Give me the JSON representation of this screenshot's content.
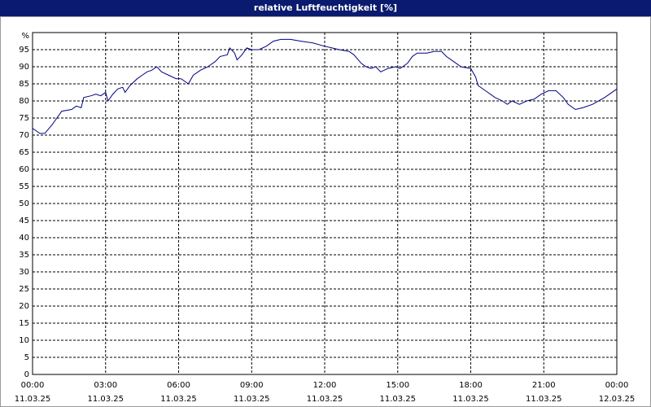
{
  "chart_data": {
    "type": "line",
    "title": "relative Luftfeuchtigkeit [%]",
    "x": [
      0,
      0.3,
      0.5,
      0.8,
      1.0,
      1.2,
      1.6,
      1.8,
      2.0,
      2.1,
      2.4,
      2.6,
      2.8,
      3.0,
      3.1,
      3.3,
      3.5,
      3.7,
      3.8,
      4.0,
      4.3,
      4.5,
      4.7,
      4.9,
      5.1,
      5.3,
      5.6,
      5.9,
      6.1,
      6.3,
      6.4,
      6.6,
      6.9,
      7.2,
      7.5,
      7.7,
      8.0,
      8.1,
      8.3,
      8.4,
      8.6,
      8.8,
      9.0,
      9.3,
      9.6,
      9.9,
      10.2,
      10.6,
      11.0,
      11.5,
      12.0,
      12.3,
      12.6,
      13.0,
      13.2,
      13.5,
      13.7,
      13.9,
      14.1,
      14.3,
      14.6,
      14.9,
      15.1,
      15.4,
      15.6,
      15.8,
      16.2,
      16.5,
      16.8,
      17.0,
      17.3,
      17.6,
      18.0,
      18.2,
      18.3,
      18.6,
      19.0,
      19.3,
      19.5,
      19.7,
      20.0,
      20.3,
      20.6,
      20.9,
      21.2,
      21.5,
      21.8,
      22.0,
      22.3,
      22.6,
      23.0,
      23.5,
      24.0
    ],
    "series": [
      {
        "name": "relative Luftfeuchtigkeit",
        "color": "#000080",
        "values": [
          72,
          70.5,
          70.5,
          73,
          75,
          77,
          77.5,
          78.5,
          78,
          81,
          81.5,
          82,
          81.5,
          82.5,
          80,
          82,
          83.5,
          84,
          82.5,
          84.5,
          86.5,
          87.5,
          88.5,
          89,
          90,
          88.5,
          87.5,
          86.5,
          86.5,
          85.5,
          85,
          87.5,
          89,
          90,
          91.5,
          93,
          93.5,
          95.5,
          94,
          92,
          93.5,
          95.5,
          95,
          95,
          96,
          97.5,
          98,
          98,
          97.5,
          97,
          96,
          95.5,
          95,
          94.5,
          93.5,
          91,
          90,
          89.5,
          90,
          88.5,
          89.5,
          90,
          89.5,
          91,
          93,
          94,
          94,
          94.5,
          94.5,
          93,
          91.5,
          90,
          89.5,
          87,
          84.5,
          83,
          81,
          80,
          79,
          80,
          79,
          80,
          80.5,
          82,
          83,
          83,
          81,
          79,
          77.5,
          78,
          79,
          81,
          83.5
        ]
      }
    ],
    "xlim": [
      0,
      24
    ],
    "xticks": [
      {
        "value": 0,
        "label": "00:00"
      },
      {
        "value": 3,
        "label": "03:00"
      },
      {
        "value": 6,
        "label": "06:00"
      },
      {
        "value": 9,
        "label": "09:00"
      },
      {
        "value": 12,
        "label": "12:00"
      },
      {
        "value": 15,
        "label": "15:00"
      },
      {
        "value": 18,
        "label": "18:00"
      },
      {
        "value": 21,
        "label": "21:00"
      },
      {
        "value": 24,
        "label": "00:00"
      }
    ],
    "xtick_dates": [
      "11.03.25",
      "11.03.25",
      "11.03.25",
      "11.03.25",
      "11.03.25",
      "11.03.25",
      "11.03.25",
      "11.03.25",
      "12.03.25"
    ],
    "ylim": [
      0,
      100
    ],
    "yticks": [
      0,
      5,
      10,
      15,
      20,
      25,
      30,
      35,
      40,
      45,
      50,
      55,
      60,
      65,
      70,
      75,
      80,
      85,
      90,
      95,
      {
        "value": 100,
        "label": "%"
      }
    ],
    "grid": true
  }
}
